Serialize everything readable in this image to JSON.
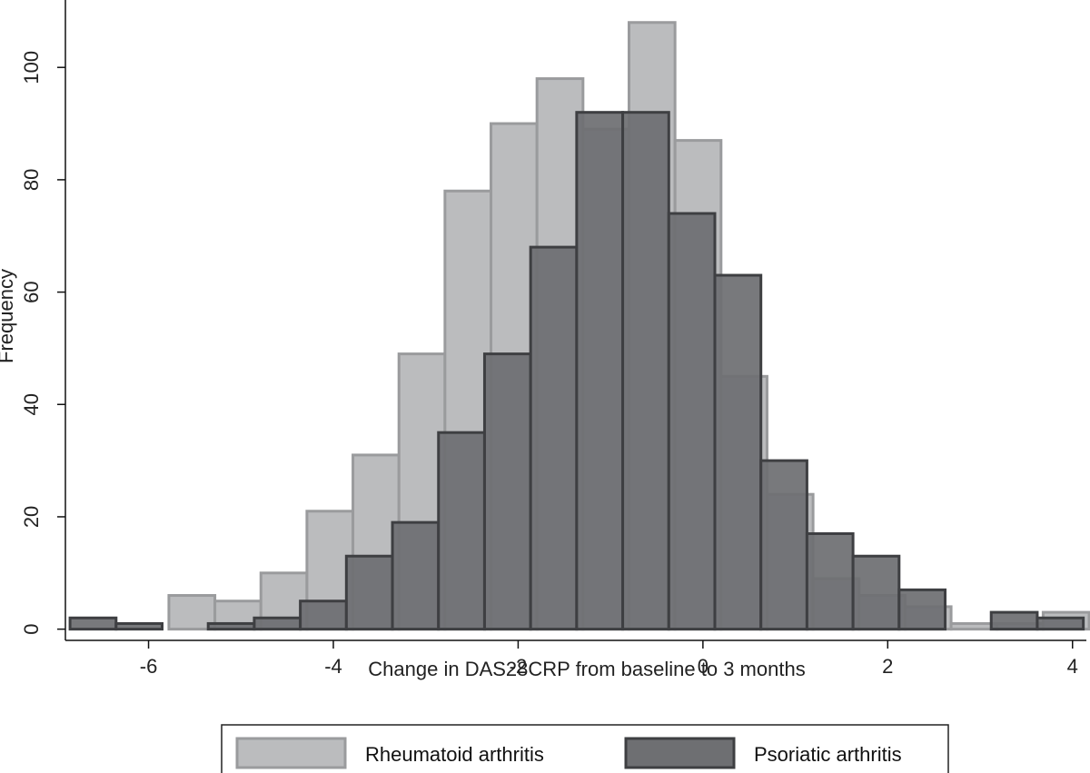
{
  "chart_data": {
    "type": "bar",
    "subtype": "overlaid-histogram",
    "title": "",
    "xlabel": "Change in DAS28CRP from baseline to 3 months",
    "ylabel": "Frequency",
    "xlim": [
      -6.9,
      4.15
    ],
    "ylim": [
      -2,
      112
    ],
    "xticks": [
      -6,
      -4,
      -2,
      0,
      2,
      4
    ],
    "xtick_labels": [
      "-6",
      "-4",
      "-2",
      "0",
      "2",
      "4"
    ],
    "yticks": [
      0,
      20,
      40,
      60,
      80,
      100
    ],
    "ytick_labels": [
      "0",
      "20",
      "40",
      "60",
      "80",
      "100"
    ],
    "grid": false,
    "legend_position": "bottom",
    "series": [
      {
        "name": "Rheumatoid arthritis",
        "color": "#bbbcbe",
        "edge_color": "#9a9b9d",
        "bin_width": 0.498,
        "bins": [
          {
            "x0": -5.78,
            "value": 6
          },
          {
            "x0": -5.282,
            "value": 5
          },
          {
            "x0": -4.784,
            "value": 10
          },
          {
            "x0": -4.286,
            "value": 21
          },
          {
            "x0": -3.788,
            "value": 31
          },
          {
            "x0": -3.29,
            "value": 49
          },
          {
            "x0": -2.792,
            "value": 78
          },
          {
            "x0": -2.294,
            "value": 90
          },
          {
            "x0": -1.796,
            "value": 98
          },
          {
            "x0": -1.298,
            "value": 89
          },
          {
            "x0": -0.8,
            "value": 108
          },
          {
            "x0": -0.302,
            "value": 87
          },
          {
            "x0": 0.196,
            "value": 45
          },
          {
            "x0": 0.694,
            "value": 24
          },
          {
            "x0": 1.192,
            "value": 9
          },
          {
            "x0": 1.69,
            "value": 6
          },
          {
            "x0": 2.188,
            "value": 4
          },
          {
            "x0": 2.686,
            "value": 1
          },
          {
            "x0": 3.184,
            "value": 1
          },
          {
            "x0": 3.682,
            "value": 3
          }
        ]
      },
      {
        "name": "Psoriatic arthritis",
        "color": "#6e6f72",
        "edge_color": "#3e3f42",
        "bin_width": 0.4985,
        "bins": [
          {
            "x0": -6.85,
            "value": 2
          },
          {
            "x0": -6.3515,
            "value": 1
          },
          {
            "x0": -5.853,
            "value": 0
          },
          {
            "x0": -5.3545,
            "value": 1
          },
          {
            "x0": -4.856,
            "value": 2
          },
          {
            "x0": -4.3575,
            "value": 5
          },
          {
            "x0": -3.859,
            "value": 13
          },
          {
            "x0": -3.3605,
            "value": 19
          },
          {
            "x0": -2.862,
            "value": 35
          },
          {
            "x0": -2.3635,
            "value": 49
          },
          {
            "x0": -1.865,
            "value": 68
          },
          {
            "x0": -1.3665,
            "value": 92
          },
          {
            "x0": -0.868,
            "value": 92
          },
          {
            "x0": -0.3695,
            "value": 74
          },
          {
            "x0": 0.129,
            "value": 63
          },
          {
            "x0": 0.6275,
            "value": 30
          },
          {
            "x0": 1.126,
            "value": 17
          },
          {
            "x0": 1.6245,
            "value": 13
          },
          {
            "x0": 2.123,
            "value": 7
          },
          {
            "x0": 2.6215,
            "value": 0
          },
          {
            "x0": 3.12,
            "value": 3
          },
          {
            "x0": 3.6185,
            "value": 2
          }
        ]
      }
    ]
  }
}
